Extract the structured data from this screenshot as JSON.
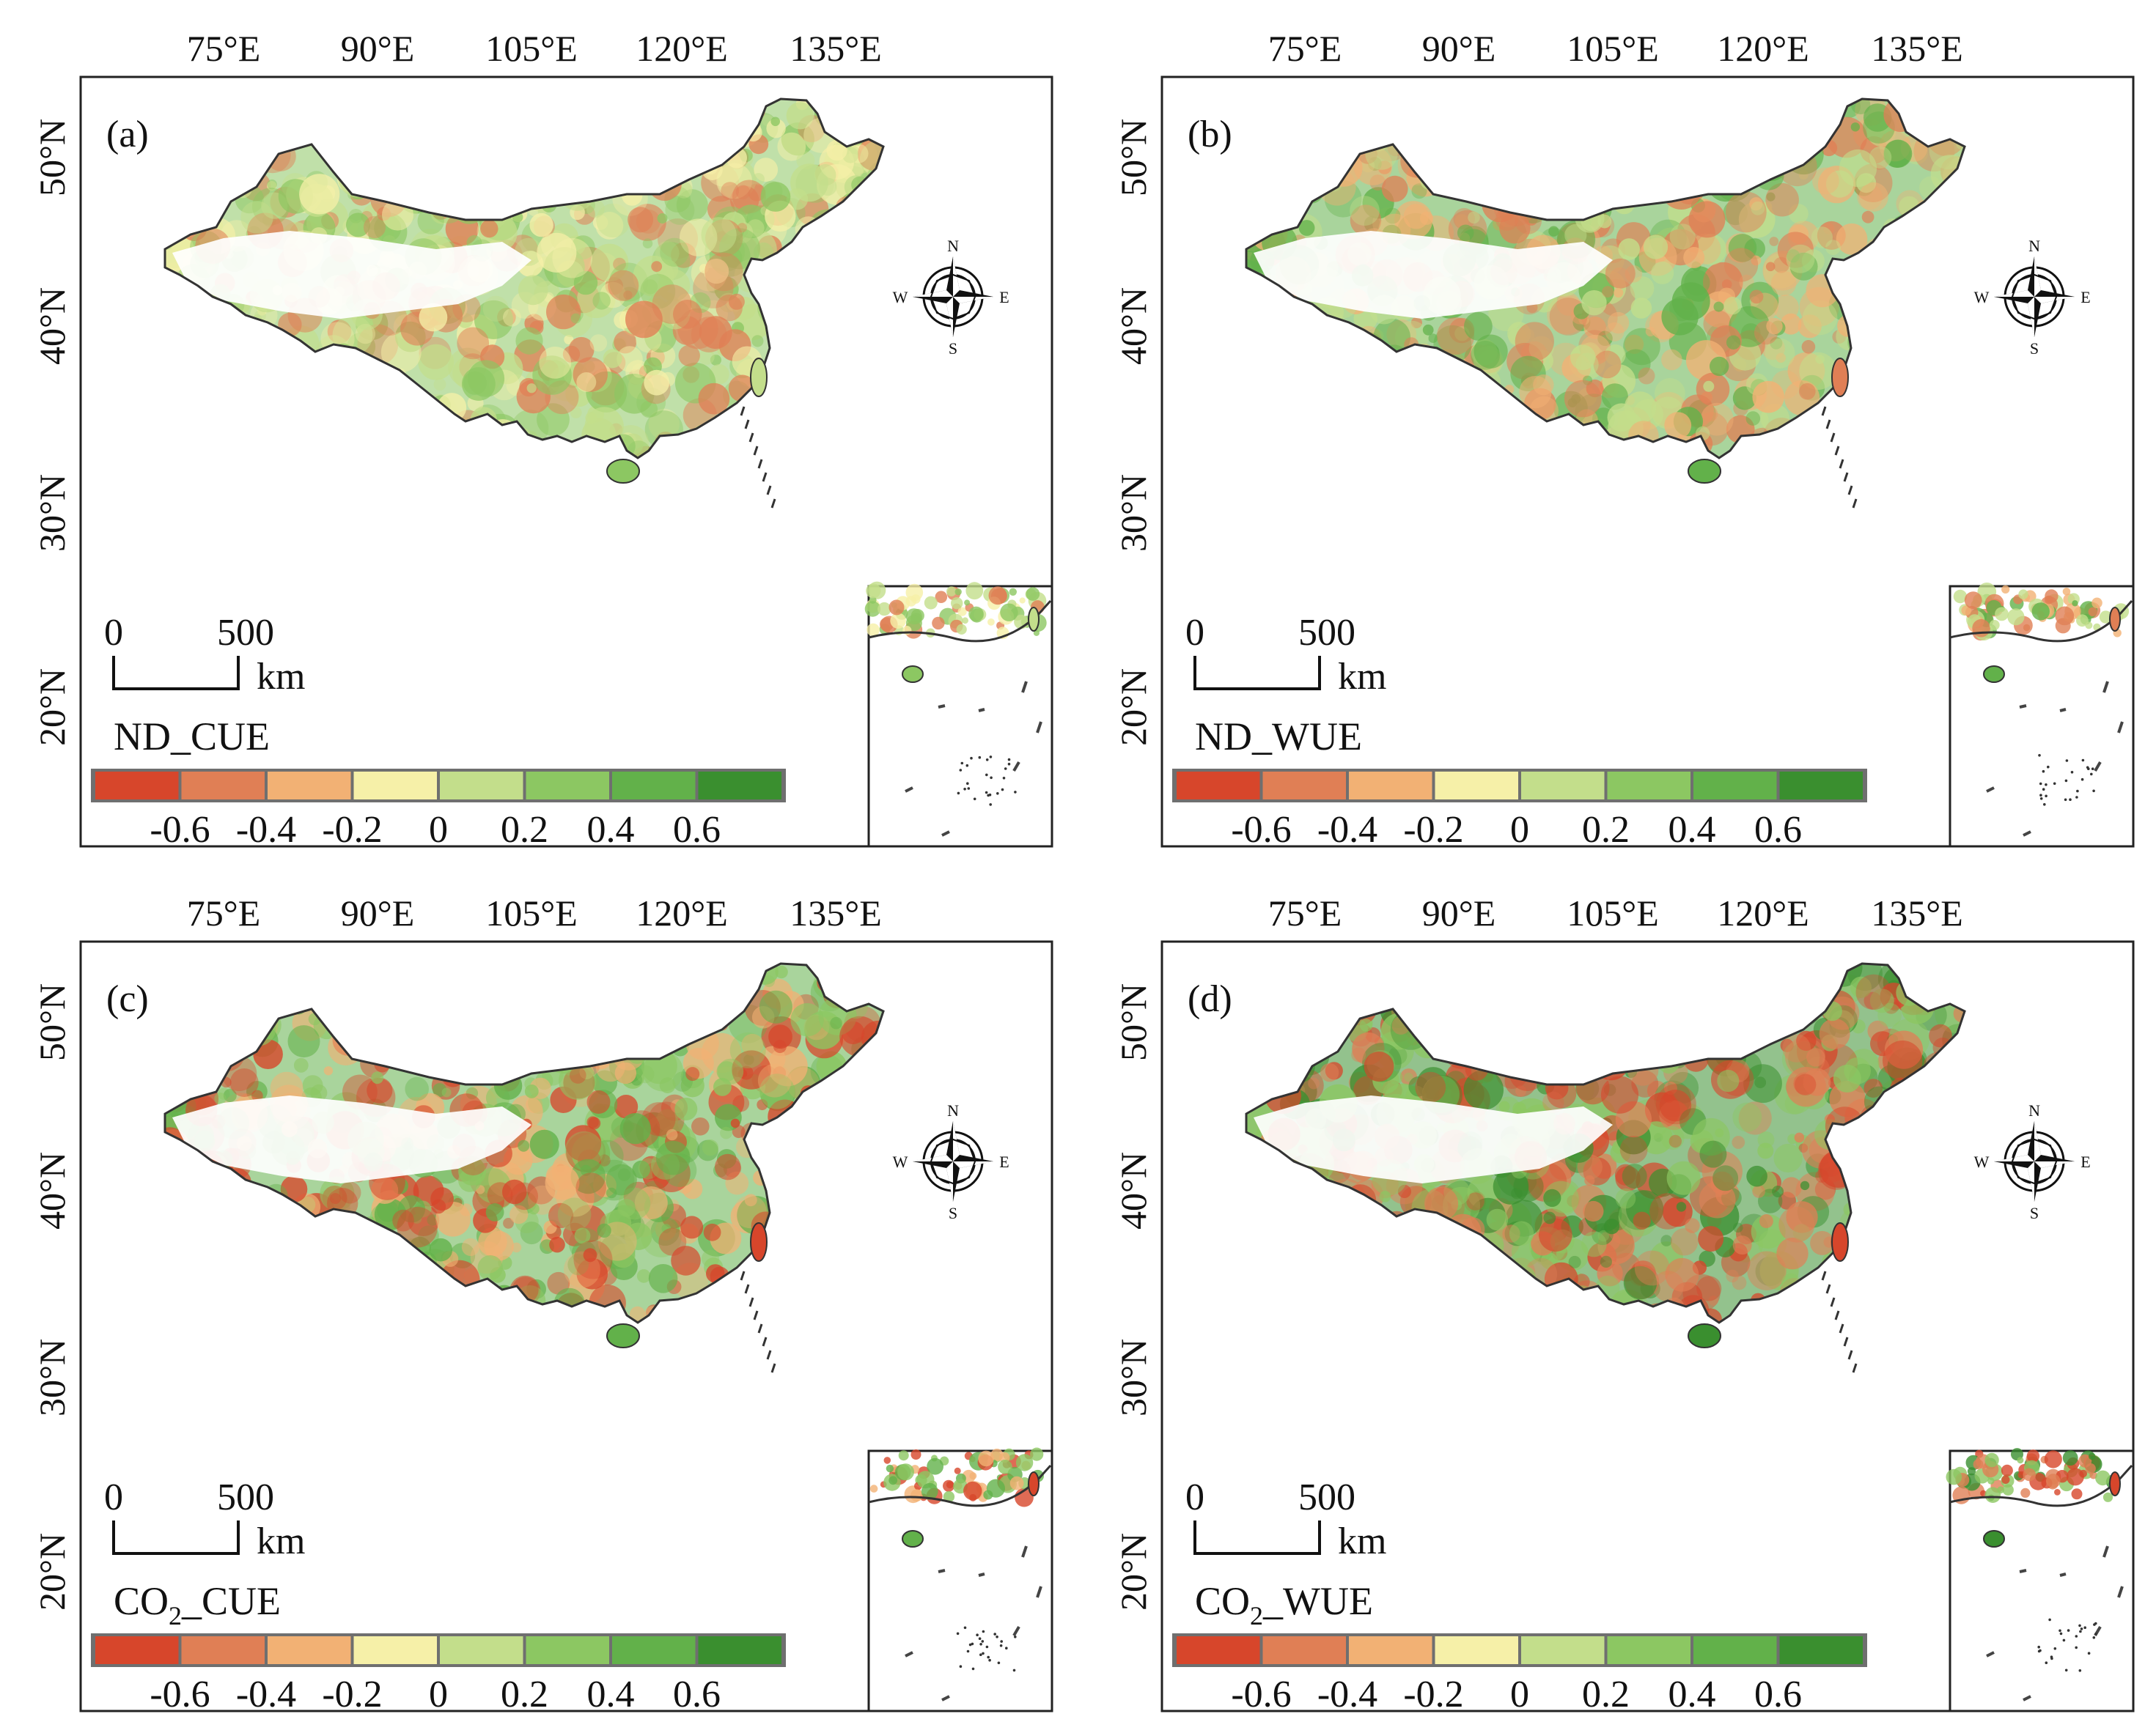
{
  "lon_ticks": [
    "75°E",
    "90°E",
    "105°E",
    "120°E",
    "135°E"
  ],
  "lat_ticks": [
    "50°N",
    "40°N",
    "30°N",
    "20°N"
  ],
  "compass": {
    "n": "N",
    "s": "S",
    "e": "E",
    "w": "W"
  },
  "scale_bar": {
    "zero": "0",
    "max": "500",
    "unit": "km"
  },
  "legend": {
    "ticks": [
      "-0.6",
      "-0.4",
      "-0.2",
      "0",
      "0.2",
      "0.4",
      "0.6"
    ],
    "colors": [
      "#d7462b",
      "#e07f55",
      "#f2b174",
      "#f6f0a8",
      "#c3de8b",
      "#8cc762",
      "#62b14a",
      "#3a8f2f"
    ]
  },
  "panels": [
    {
      "id": "a",
      "label": "(a)",
      "variable": "ND_CUE",
      "var_main": "ND",
      "var_sub": "",
      "var_rest": "_CUE",
      "dominant": [
        "#8cc762",
        "#c3de8b",
        "#e07f55",
        "#f6f0a8"
      ]
    },
    {
      "id": "b",
      "label": "(b)",
      "variable": "ND_WUE",
      "var_main": "ND",
      "var_sub": "",
      "var_rest": "_WUE",
      "dominant": [
        "#62b14a",
        "#e07f55",
        "#c3de8b",
        "#f2b174"
      ]
    },
    {
      "id": "c",
      "label": "(c)",
      "variable": "CO2_CUE",
      "var_main": "CO",
      "var_sub": "2",
      "var_rest": "_CUE",
      "dominant": [
        "#62b14a",
        "#d7462b",
        "#8cc762",
        "#f2b174"
      ]
    },
    {
      "id": "d",
      "label": "(d)",
      "variable": "CO2_WUE",
      "var_main": "CO",
      "var_sub": "2",
      "var_rest": "_WUE",
      "dominant": [
        "#3a8f2f",
        "#d7462b",
        "#8cc762",
        "#e07f55"
      ]
    }
  ]
}
